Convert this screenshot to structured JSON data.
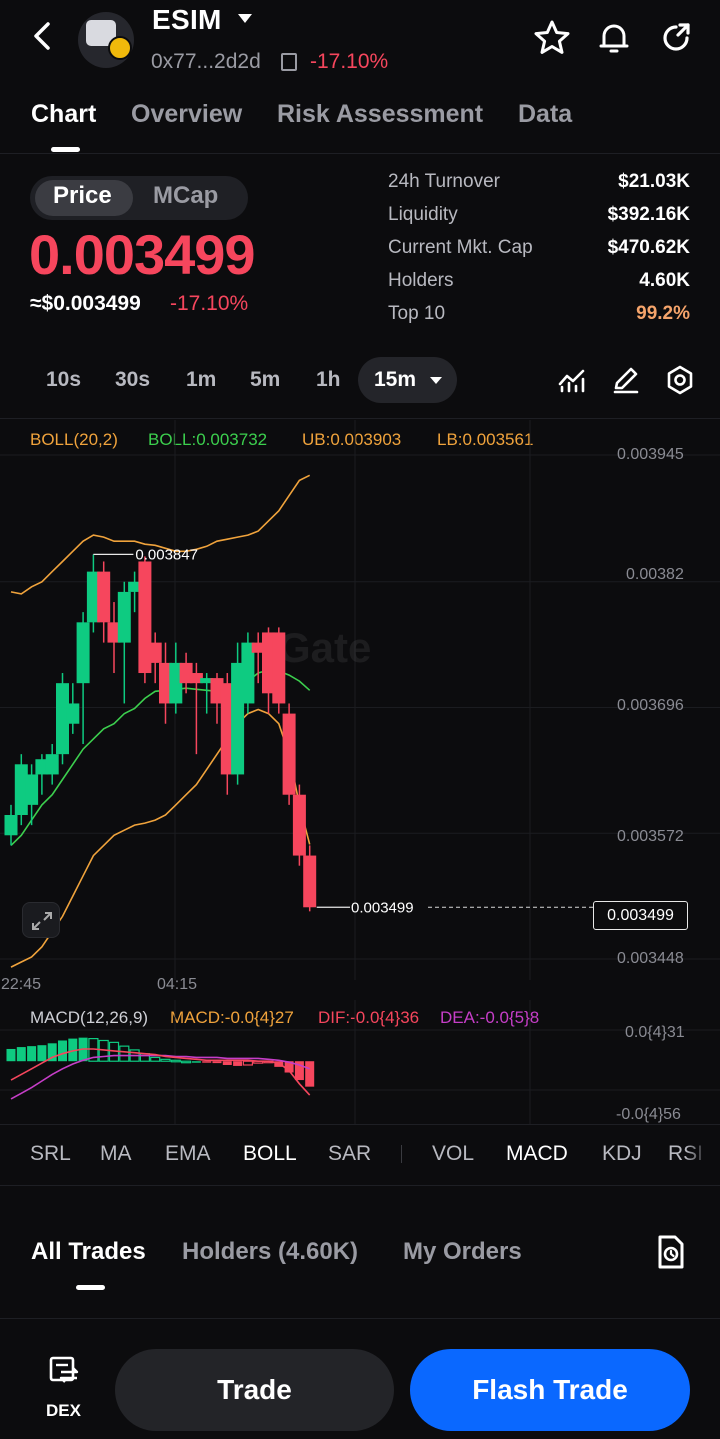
{
  "header": {
    "token_name": "ESIM",
    "address": "0x77...2d2d",
    "change": "-17.10%"
  },
  "tabs": [
    "Chart",
    "Overview",
    "Risk Assessment",
    "Data"
  ],
  "price": {
    "toggle": [
      "Price",
      "MCap"
    ],
    "value": "0.003499",
    "usd_value": "≈$0.003499",
    "change": "-17.10%"
  },
  "stats": [
    {
      "label": "24h   Turnover",
      "value": "$21.03K"
    },
    {
      "label": "Liquidity",
      "value": "$392.16K"
    },
    {
      "label": "Current Mkt. Cap",
      "value": "$470.62K"
    },
    {
      "label": "Holders",
      "value": "4.60K"
    },
    {
      "label": "Top 10",
      "value": "99.2%"
    }
  ],
  "intervals": [
    "10s",
    "30s",
    "1m",
    "5m",
    "1h",
    "15m"
  ],
  "boll_legend": {
    "name": "BOLL(20,2)",
    "mid": "BOLL:0.003732",
    "ub": "UB:0.003903",
    "lb": "LB:0.003561"
  },
  "price_axis": [
    "0.003945",
    "0.00382",
    "0.003696",
    "0.003572",
    "0.003448"
  ],
  "time_axis": [
    "22:45",
    "04:15"
  ],
  "chart_marks": {
    "high_label": "0.003847",
    "last_label": "0.003499",
    "last_tag": "0.003499",
    "watermark": "Gate"
  },
  "macd_legend": {
    "name": "MACD(12,26,9)",
    "macd": "MACD:-0.0{4}27",
    "dif": "DIF:-0.0{4}36",
    "dea": "DEA:-0.0{5}8"
  },
  "macd_axis": [
    "0.0{4}31",
    "-0.0{4}56"
  ],
  "indicators": [
    "SRL",
    "MA",
    "EMA",
    "BOLL",
    "SAR",
    "VOL",
    "MACD",
    "KDJ",
    "RSI"
  ],
  "bottom_tabs": [
    "All Trades",
    "Holders (4.60K)",
    "My Orders"
  ],
  "bottom_bar": {
    "dex_label": "DEX",
    "trade_label": "Trade",
    "flash_label": "Flash Trade"
  },
  "colors": {
    "up": "#0ecb81",
    "down": "#f6465d",
    "boll_mid": "#3ccf4e",
    "boll_band": "#f0a33c",
    "dea": "#c63ec8",
    "accent": "#0a68ff",
    "top10": "#f5a46b"
  },
  "chart_data": {
    "type": "candlestick",
    "interval": "15m",
    "candles": [
      {
        "o": 0.00357,
        "h": 0.0036,
        "l": 0.00356,
        "c": 0.00359
      },
      {
        "o": 0.00359,
        "h": 0.00365,
        "l": 0.00358,
        "c": 0.00364
      },
      {
        "o": 0.0036,
        "h": 0.00364,
        "l": 0.00358,
        "c": 0.00363
      },
      {
        "o": 0.00363,
        "h": 0.00365,
        "l": 0.00361,
        "c": 0.003645
      },
      {
        "o": 0.00363,
        "h": 0.00366,
        "l": 0.00362,
        "c": 0.00365
      },
      {
        "o": 0.00365,
        "h": 0.00373,
        "l": 0.00364,
        "c": 0.00372
      },
      {
        "o": 0.00368,
        "h": 0.00372,
        "l": 0.00367,
        "c": 0.0037
      },
      {
        "o": 0.00372,
        "h": 0.00379,
        "l": 0.00366,
        "c": 0.00378
      },
      {
        "o": 0.00378,
        "h": 0.003847,
        "l": 0.00377,
        "c": 0.00383
      },
      {
        "o": 0.00383,
        "h": 0.00384,
        "l": 0.00376,
        "c": 0.00378
      },
      {
        "o": 0.00378,
        "h": 0.0038,
        "l": 0.00373,
        "c": 0.00376
      },
      {
        "o": 0.00376,
        "h": 0.00382,
        "l": 0.0037,
        "c": 0.00381
      },
      {
        "o": 0.00381,
        "h": 0.00383,
        "l": 0.00379,
        "c": 0.00382
      },
      {
        "o": 0.00384,
        "h": 0.003845,
        "l": 0.00372,
        "c": 0.00373
      },
      {
        "o": 0.00376,
        "h": 0.00377,
        "l": 0.00372,
        "c": 0.00374
      },
      {
        "o": 0.00374,
        "h": 0.00376,
        "l": 0.00368,
        "c": 0.0037
      },
      {
        "o": 0.0037,
        "h": 0.00376,
        "l": 0.00369,
        "c": 0.00374
      },
      {
        "o": 0.00374,
        "h": 0.00375,
        "l": 0.00371,
        "c": 0.00372
      },
      {
        "o": 0.00373,
        "h": 0.00374,
        "l": 0.00365,
        "c": 0.00372
      },
      {
        "o": 0.00372,
        "h": 0.00373,
        "l": 0.00369,
        "c": 0.003725
      },
      {
        "o": 0.003725,
        "h": 0.00373,
        "l": 0.00368,
        "c": 0.0037
      },
      {
        "o": 0.00372,
        "h": 0.00373,
        "l": 0.00361,
        "c": 0.00363
      },
      {
        "o": 0.00363,
        "h": 0.00376,
        "l": 0.00362,
        "c": 0.00374
      },
      {
        "o": 0.0037,
        "h": 0.00377,
        "l": 0.00369,
        "c": 0.00376
      },
      {
        "o": 0.00376,
        "h": 0.00377,
        "l": 0.00372,
        "c": 0.00375
      },
      {
        "o": 0.00377,
        "h": 0.003775,
        "l": 0.00369,
        "c": 0.00371
      },
      {
        "o": 0.00377,
        "h": 0.003775,
        "l": 0.00369,
        "c": 0.0037
      },
      {
        "o": 0.00369,
        "h": 0.0037,
        "l": 0.0036,
        "c": 0.00361
      },
      {
        "o": 0.00361,
        "h": 0.00362,
        "l": 0.00354,
        "c": 0.00355
      },
      {
        "o": 0.00355,
        "h": 0.00356,
        "l": 0.003495,
        "c": 0.003499
      }
    ],
    "boll_mid": [
      0.00356,
      0.00357,
      0.003585,
      0.0036,
      0.00361,
      0.003625,
      0.00364,
      0.003655,
      0.003665,
      0.003675,
      0.00368,
      0.00369,
      0.003695,
      0.003705,
      0.003712,
      0.003713,
      0.003714,
      0.003715,
      0.003714,
      0.003713,
      0.003712,
      0.003712,
      0.003712,
      0.003722,
      0.00373,
      0.003733,
      0.003732,
      0.003728,
      0.003722,
      0.003713
    ],
    "boll_ub": [
      0.00381,
      0.003808,
      0.003815,
      0.00382,
      0.00383,
      0.00384,
      0.00385,
      0.00386,
      0.003866,
      0.003864,
      0.00386,
      0.00386,
      0.00386,
      0.003857,
      0.003856,
      0.003853,
      0.00385,
      0.00385,
      0.003852,
      0.003855,
      0.00386,
      0.003862,
      0.003864,
      0.003866,
      0.00387,
      0.00388,
      0.00389,
      0.003905,
      0.00392,
      0.003925
    ],
    "boll_lb": [
      0.00344,
      0.003445,
      0.00345,
      0.00346,
      0.003475,
      0.00349,
      0.00351,
      0.00353,
      0.00355,
      0.00356,
      0.00357,
      0.003575,
      0.00358,
      0.003582,
      0.003585,
      0.00359,
      0.0036,
      0.00361,
      0.00362,
      0.003635,
      0.00365,
      0.003665,
      0.00368,
      0.00369,
      0.003694,
      0.00369,
      0.00368,
      0.00365,
      0.0036,
      0.003561
    ],
    "macd_hist": [
      1.3e-05,
      1.5e-05,
      1.6e-05,
      1.7e-05,
      1.9e-05,
      2.2e-05,
      2.4e-05,
      2.5e-05,
      2.4e-05,
      2.2e-05,
      2e-05,
      1.6e-05,
      1.2e-05,
      8e-06,
      4e-06,
      2e-06,
      1e-06,
      0.0,
      0.0,
      -1e-06,
      -2e-06,
      -4e-06,
      -5e-06,
      -4e-06,
      -2e-06,
      -1e-06,
      -6e-06,
      -1.2e-05,
      -2e-05,
      -2.7e-05
    ],
    "dif": [
      -2e-05,
      -1.4e-05,
      -8e-06,
      -2e-06,
      4e-06,
      8e-06,
      1.1e-05,
      1.3e-05,
      1.3e-05,
      1.2e-05,
      1.1e-05,
      1e-05,
      9e-06,
      8e-06,
      7e-06,
      5e-06,
      4e-06,
      3e-06,
      2e-06,
      1e-06,
      1e-06,
      1e-06,
      1e-06,
      1e-06,
      0.0,
      0.0,
      -2e-06,
      -1e-05,
      -2.4e-05,
      -3.6e-05
    ],
    "dea": [
      -4e-05,
      -3.4e-05,
      -2.8e-05,
      -2.1e-05,
      -1.4e-05,
      -8e-06,
      -3e-06,
      1e-06,
      4e-06,
      5e-06,
      6e-06,
      6e-06,
      6e-06,
      6e-06,
      6e-06,
      6e-06,
      5e-06,
      5e-06,
      4e-06,
      4e-06,
      4e-06,
      3e-06,
      3e-06,
      3e-06,
      3e-06,
      2e-06,
      1e-06,
      -1e-06,
      -4e-06,
      -8e-06
    ],
    "ylim": [
      0.003448,
      0.003945
    ],
    "macd_ylim": [
      -5.6e-05,
      3.1e-05
    ],
    "last_price": 0.003499,
    "high_marker": 0.003847
  }
}
